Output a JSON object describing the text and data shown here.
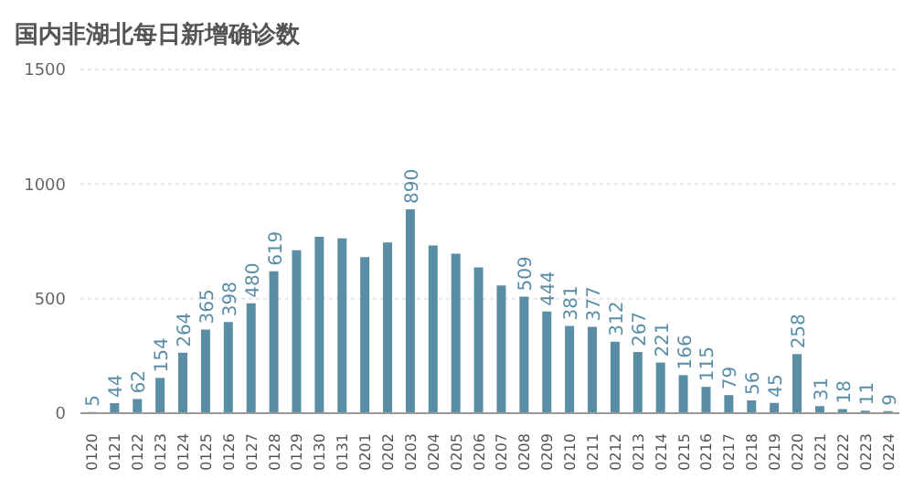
{
  "chart_data": {
    "type": "bar",
    "title": "国内非湖北每日新增确诊数",
    "categories": [
      "0120",
      "0121",
      "0122",
      "0123",
      "0124",
      "0125",
      "0126",
      "0127",
      "0128",
      "0129",
      "0130",
      "0131",
      "0201",
      "0202",
      "0203",
      "0204",
      "0205",
      "0206",
      "0207",
      "0208",
      "0209",
      "0210",
      "0211",
      "0212",
      "0213",
      "0214",
      "0215",
      "0216",
      "0217",
      "0218",
      "0219",
      "0220",
      "0221",
      "0222",
      "0223",
      "0224"
    ],
    "values": [
      5,
      44,
      62,
      154,
      264,
      365,
      398,
      480,
      619,
      711,
      770,
      763,
      681,
      745,
      890,
      732,
      696,
      636,
      558,
      509,
      444,
      381,
      377,
      312,
      267,
      221,
      166,
      115,
      79,
      56,
      45,
      258,
      31,
      18,
      11,
      9
    ],
    "value_labels": [
      "5",
      "44",
      "62",
      "154",
      "264",
      "365",
      "398",
      "480",
      "619",
      null,
      null,
      null,
      null,
      null,
      "890",
      null,
      null,
      null,
      null,
      "509",
      "444",
      "381",
      "377",
      "312",
      "267",
      "221",
      "166",
      "115",
      "79",
      "56",
      "45",
      "258",
      "31",
      "18",
      "11",
      "9"
    ],
    "color": "#5a8ea6",
    "ylim": [
      0,
      1500
    ],
    "yticks": [
      0,
      500,
      1000,
      1500
    ],
    "grid": "y"
  }
}
